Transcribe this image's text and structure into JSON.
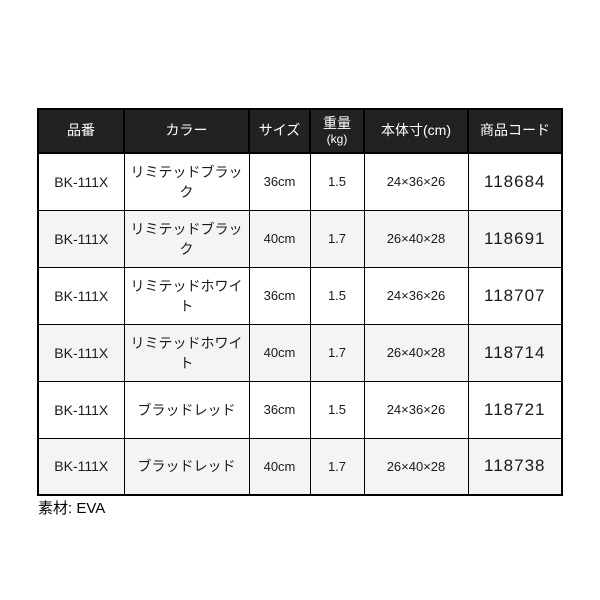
{
  "page": {
    "background": "#ffffff"
  },
  "table": {
    "columns": [
      {
        "key": "hinban",
        "label": "品番"
      },
      {
        "key": "color",
        "label": "カラー"
      },
      {
        "key": "size",
        "label": "サイズ"
      },
      {
        "key": "weight",
        "label": "重量(kg)",
        "label_lines": [
          "重量",
          "(kg)"
        ]
      },
      {
        "key": "dims",
        "label": "本体寸(cm)"
      },
      {
        "key": "code",
        "label": "商品コード"
      }
    ],
    "rows": [
      [
        "BK-111X",
        "リミテッドブラック",
        "36cm",
        "1.5",
        "24×36×26",
        "118684"
      ],
      [
        "BK-111X",
        "リミテッドブラック",
        "40cm",
        "1.7",
        "26×40×28",
        "118691"
      ],
      [
        "BK-111X",
        "リミテッドホワイト",
        "36cm",
        "1.5",
        "24×36×26",
        "118707"
      ],
      [
        "BK-111X",
        "リミテッドホワイト",
        "40cm",
        "1.7",
        "26×40×28",
        "118714"
      ],
      [
        "BK-111X",
        "ブラッドレッド",
        "36cm",
        "1.5",
        "24×36×26",
        "118721"
      ],
      [
        "BK-111X",
        "ブラッドレッド",
        "40cm",
        "1.7",
        "26×40×28",
        "118738"
      ]
    ],
    "colors": {
      "header_bg": "#222222",
      "header_text": "#ffffff",
      "row_alt_bg": "#f4f4f4",
      "border": "#000000"
    }
  },
  "footer": {
    "material_note": "素材: EVA"
  }
}
